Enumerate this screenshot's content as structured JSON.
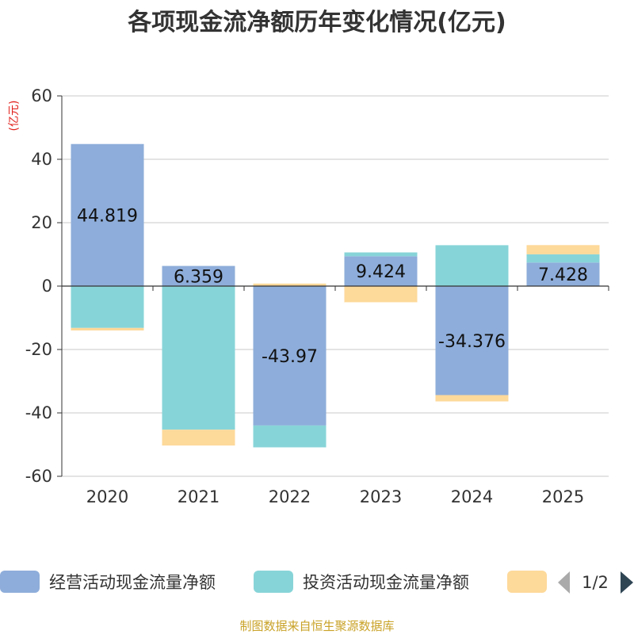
{
  "chart_data": {
    "type": "bar",
    "stacked": true,
    "title": "各项现金流净额历年变化情况(亿元)",
    "ylabel": "(亿元)",
    "xlabel": "",
    "ylim": [
      -60,
      60
    ],
    "yticks": [
      60,
      40,
      20,
      0,
      -20,
      -40,
      -60
    ],
    "categories": [
      "2020",
      "2021",
      "2022",
      "2023",
      "2024",
      "2025"
    ],
    "series": [
      {
        "name": "经营活动现金流量净额",
        "color": "#8eadda",
        "values": [
          44.819,
          6.359,
          -43.97,
          9.424,
          -34.376,
          7.428
        ]
      },
      {
        "name": "投资活动现金流量净额",
        "color": "#87d4d8",
        "values": [
          -13.2,
          -45.3,
          -6.9,
          1.2,
          12.9,
          2.6
        ]
      },
      {
        "name": "",
        "color": "#fdd99a",
        "values": [
          -0.8,
          -5.0,
          0.8,
          -5.1,
          -2.0,
          2.9
        ]
      }
    ],
    "data_labels": [
      "44.819",
      "6.359",
      "-43.97",
      "9.424",
      "-34.376",
      "7.428"
    ],
    "legend": {
      "position": "bottom",
      "page": "1/2"
    }
  },
  "source_note": "制图数据来自恒生聚源数据库"
}
